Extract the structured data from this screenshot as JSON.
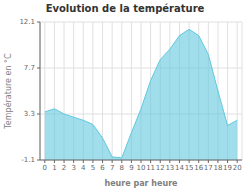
{
  "chart_data": {
    "type": "area",
    "title": "Evolution de la température",
    "xlabel": "heure par heure",
    "ylabel": "Température en °C",
    "x": [
      0,
      1,
      2,
      3,
      4,
      5,
      6,
      7,
      8,
      9,
      10,
      11,
      12,
      13,
      14,
      15,
      16,
      17,
      18,
      19,
      20
    ],
    "values": [
      3.5,
      3.8,
      3.3,
      3.0,
      2.7,
      2.3,
      1.0,
      -0.8,
      -0.9,
      1.5,
      3.8,
      6.5,
      8.5,
      9.5,
      10.8,
      11.4,
      10.8,
      9.0,
      5.5,
      2.2,
      2.7
    ],
    "color": "#60c8e0",
    "xlim": [
      -0.5,
      20.5
    ],
    "xticks": [
      0,
      1,
      2,
      3,
      4,
      5,
      6,
      7,
      8,
      9,
      10,
      11,
      12,
      13,
      14,
      15,
      16,
      17,
      18,
      19,
      20
    ],
    "ylim": [
      -1.1,
      12.1
    ],
    "yticks": [
      -1.1,
      3.3,
      7.7,
      12.1
    ],
    "grid": true
  }
}
